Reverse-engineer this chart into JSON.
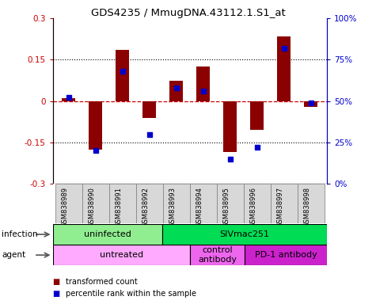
{
  "title": "GDS4235 / MmugDNA.43112.1.S1_at",
  "samples": [
    "GSM838989",
    "GSM838990",
    "GSM838991",
    "GSM838992",
    "GSM838993",
    "GSM838994",
    "GSM838995",
    "GSM838996",
    "GSM838997",
    "GSM838998"
  ],
  "transformed_count": [
    0.01,
    -0.175,
    0.185,
    -0.06,
    0.075,
    0.125,
    -0.185,
    -0.105,
    0.235,
    -0.02
  ],
  "percentile_rank": [
    52,
    20,
    68,
    30,
    58,
    56,
    15,
    22,
    82,
    49
  ],
  "ylim_left": [
    -0.3,
    0.3
  ],
  "ylim_right": [
    0,
    100
  ],
  "yticks_left": [
    -0.3,
    -0.15,
    0.0,
    0.15,
    0.3
  ],
  "yticks_right": [
    0,
    25,
    50,
    75,
    100
  ],
  "ytick_labels_left": [
    "-0.3",
    "-0.15",
    "0",
    "0.15",
    "0.3"
  ],
  "ytick_labels_right": [
    "0%",
    "25%",
    "50%",
    "75%",
    "100%"
  ],
  "bar_color": "#8B0000",
  "dot_color": "#0000CC",
  "hline_color": "#CC0000",
  "infection_groups": [
    {
      "label": "uninfected",
      "start": 0,
      "end": 4,
      "color": "#90EE90"
    },
    {
      "label": "SIVmac251",
      "start": 4,
      "end": 10,
      "color": "#00DD55"
    }
  ],
  "agent_groups": [
    {
      "label": "untreated",
      "start": 0,
      "end": 5,
      "color": "#FFAAFF"
    },
    {
      "label": "control\nantibody",
      "start": 5,
      "end": 7,
      "color": "#EE66EE"
    },
    {
      "label": "PD-1 antibody",
      "start": 7,
      "end": 10,
      "color": "#CC22CC"
    }
  ],
  "legend_items": [
    {
      "label": "transformed count",
      "color": "#8B0000"
    },
    {
      "label": "percentile rank within the sample",
      "color": "#0000CC"
    }
  ],
  "left_label_color": "#CC0000",
  "right_label_color": "#0000CC"
}
